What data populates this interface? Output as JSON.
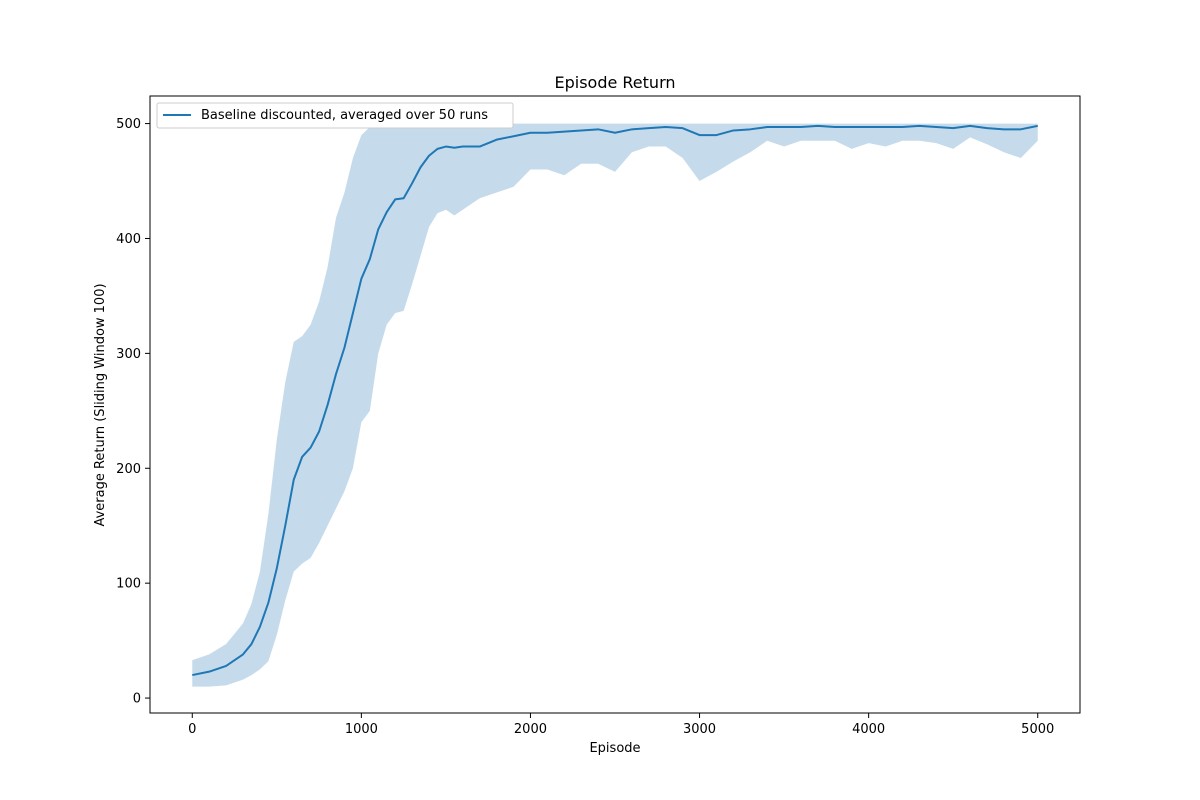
{
  "chart_data": {
    "type": "line",
    "title": "Episode Return",
    "xlabel": "Episode",
    "ylabel": "Average Return (Sliding Window 100)",
    "xlim": [
      -250,
      5250
    ],
    "ylim": [
      -13,
      524
    ],
    "xticks": [
      0,
      1000,
      2000,
      3000,
      4000,
      5000
    ],
    "yticks": [
      0,
      100,
      200,
      300,
      400,
      500
    ],
    "grid": false,
    "legend_position": "top-left",
    "series": [
      {
        "name": "Baseline discounted, averaged over 50 runs",
        "color": "#1f77b4",
        "band_color": "#c5dbec",
        "x": [
          0,
          100,
          200,
          300,
          350,
          400,
          450,
          500,
          550,
          600,
          650,
          700,
          750,
          800,
          850,
          900,
          950,
          1000,
          1050,
          1100,
          1150,
          1200,
          1250,
          1300,
          1350,
          1400,
          1450,
          1500,
          1550,
          1600,
          1700,
          1800,
          1900,
          2000,
          2100,
          2200,
          2300,
          2400,
          2500,
          2600,
          2700,
          2800,
          2900,
          3000,
          3100,
          3200,
          3300,
          3400,
          3500,
          3600,
          3700,
          3800,
          3900,
          4000,
          4100,
          4200,
          4300,
          4400,
          4500,
          4600,
          4700,
          4800,
          4900,
          5000
        ],
        "mean": [
          20,
          23,
          28,
          38,
          47,
          62,
          83,
          113,
          150,
          190,
          210,
          218,
          232,
          255,
          282,
          305,
          335,
          365,
          382,
          408,
          423,
          434,
          435,
          448,
          462,
          472,
          478,
          480,
          479,
          480,
          480,
          486,
          489,
          492,
          492,
          493,
          494,
          495,
          492,
          495,
          496,
          497,
          496,
          490,
          490,
          494,
          495,
          497,
          497,
          497,
          498,
          497,
          497,
          497,
          497,
          497,
          498,
          497,
          496,
          498,
          496,
          495,
          495,
          498
        ],
        "upper": [
          33,
          38,
          47,
          65,
          82,
          110,
          160,
          225,
          275,
          310,
          315,
          325,
          345,
          375,
          418,
          440,
          470,
          490,
          497,
          500,
          500,
          500,
          500,
          500,
          500,
          500,
          500,
          500,
          500,
          500,
          500,
          500,
          500,
          500,
          500,
          500,
          500,
          500,
          500,
          500,
          500,
          500,
          500,
          500,
          500,
          500,
          500,
          500,
          500,
          500,
          500,
          500,
          500,
          500,
          500,
          500,
          500,
          500,
          500,
          500,
          500,
          500,
          500,
          500
        ],
        "lower": [
          10,
          10,
          11,
          16,
          20,
          25,
          32,
          55,
          85,
          110,
          117,
          122,
          135,
          150,
          165,
          180,
          200,
          240,
          250,
          300,
          325,
          335,
          337,
          360,
          385,
          410,
          422,
          425,
          420,
          425,
          435,
          440,
          445,
          460,
          460,
          455,
          465,
          465,
          458,
          475,
          480,
          480,
          470,
          450,
          458,
          467,
          475,
          485,
          480,
          485,
          485,
          485,
          478,
          483,
          480,
          485,
          485,
          483,
          478,
          488,
          482,
          475,
          470,
          485
        ]
      }
    ]
  }
}
